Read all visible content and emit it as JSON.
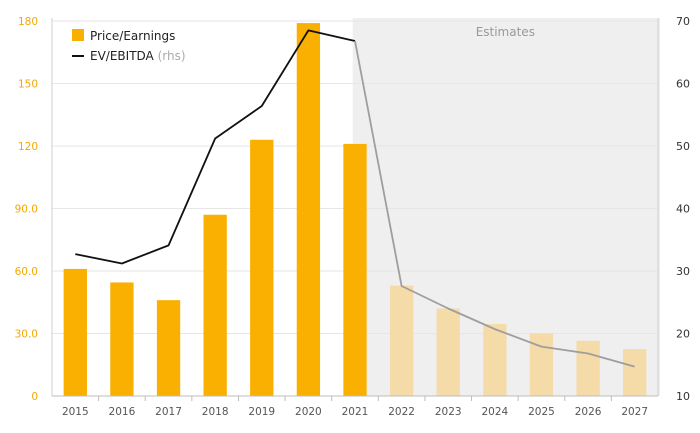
{
  "chart_data": {
    "type": "bar",
    "categories": [
      "2015",
      "2016",
      "2017",
      "2018",
      "2019",
      "2020",
      "2021",
      "2022",
      "2023",
      "2024",
      "2025",
      "2026",
      "2027"
    ],
    "estimate_start": "2022",
    "estimates_label": "Estimates",
    "series": [
      {
        "name": "Price/Earnings",
        "type": "bar",
        "axis": "left",
        "color": "#f9b000",
        "estimate_color": "#f5dba8",
        "values": [
          61,
          54.5,
          46,
          87,
          123,
          179,
          121,
          53,
          42,
          34.5,
          30,
          26.5,
          22.5
        ]
      },
      {
        "name": "EV/EBITDA",
        "name_suffix": "(rhs)",
        "type": "line",
        "axis": "right",
        "color": "#111111",
        "estimate_color": "#9e9e9e",
        "values": [
          32.7,
          31.2,
          34.1,
          51.2,
          56.4,
          68.5,
          66.8,
          27.6,
          24.0,
          20.7,
          17.9,
          16.8,
          14.7
        ]
      }
    ],
    "y_left": {
      "min": 0,
      "max": 180,
      "ticks": [
        "0",
        "30.0",
        "60.0",
        "90.0",
        "120",
        "150",
        "180"
      ]
    },
    "y_right": {
      "min": 10,
      "max": 70,
      "ticks": [
        "10",
        "20",
        "30",
        "40",
        "50",
        "60",
        "70"
      ]
    },
    "legend_position": "top-left",
    "grid": true
  }
}
